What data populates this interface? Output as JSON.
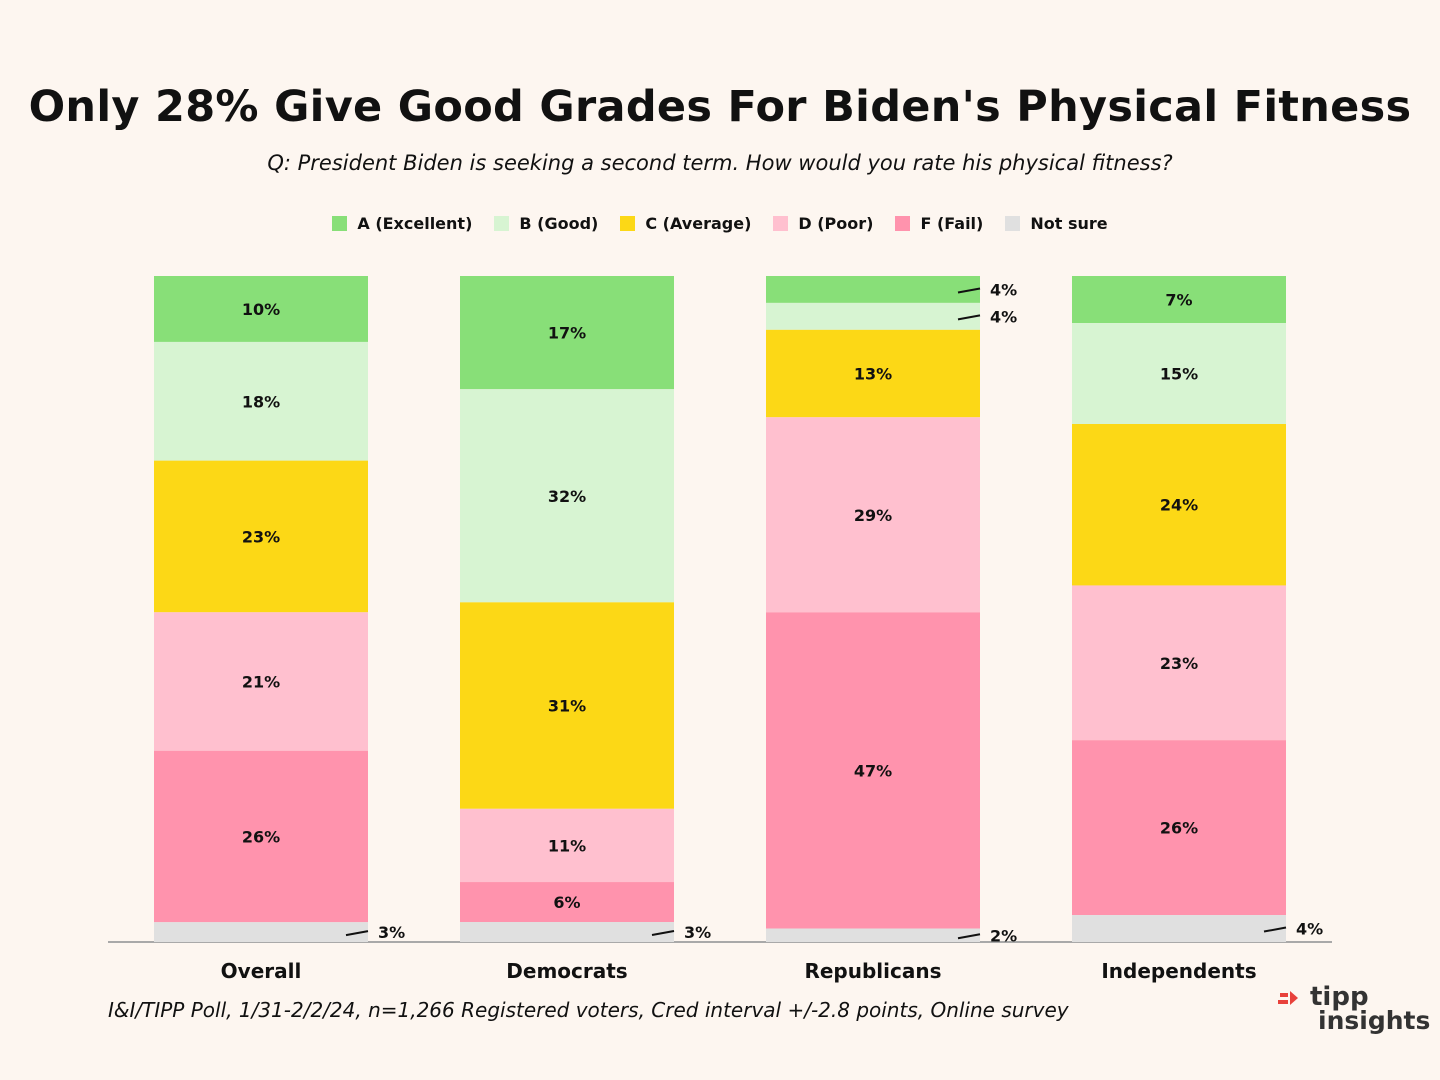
{
  "title": "Only 28% Give Good Grades For Biden's Physical Fitness",
  "subtitle": "Q:  President Biden is seeking a second term. How would you rate his physical fitness?",
  "footnote": "I&I/TIPP Poll, 1/31-2/2/24, n=1,266 Registered voters, Cred interval +/-2.8 points, Online survey",
  "logo": {
    "line1": "tipp",
    "line2": "insights",
    "accent_color": "#e8413b"
  },
  "chart_data": {
    "type": "bar",
    "stacked": true,
    "orientation": "vertical",
    "ylim": [
      0,
      100
    ],
    "grid": false,
    "legend_position": "top-center",
    "categories": [
      "Overall",
      "Democrats",
      "Republicans",
      "Independents"
    ],
    "series": [
      {
        "name": "A (Excellent)",
        "color": "#88df78",
        "values": [
          10,
          17,
          4,
          7
        ]
      },
      {
        "name": "B (Good)",
        "color": "#d7f4d2",
        "values": [
          18,
          32,
          4,
          15
        ]
      },
      {
        "name": "C (Average)",
        "color": "#fcd816",
        "values": [
          23,
          31,
          13,
          24
        ]
      },
      {
        "name": "D (Poor)",
        "color": "#ffc0cf",
        "values": [
          21,
          11,
          29,
          23
        ]
      },
      {
        "name": "F (Fail)",
        "color": "#ff93ad",
        "values": [
          26,
          6,
          47,
          26
        ]
      },
      {
        "name": "Not sure",
        "color": "#e0e0e0",
        "values": [
          3,
          3,
          2,
          4
        ]
      }
    ],
    "data_labels": [
      [
        "10%",
        "17%",
        "4%",
        "7%"
      ],
      [
        "18%",
        "32%",
        "4%",
        "15%"
      ],
      [
        "23%",
        "31%",
        "13%",
        "24%"
      ],
      [
        "21%",
        "11%",
        "29%",
        "23%"
      ],
      [
        "26%",
        "6%",
        "47%",
        "26%"
      ],
      [
        "3%",
        "3%",
        "2%",
        "4%"
      ]
    ]
  }
}
